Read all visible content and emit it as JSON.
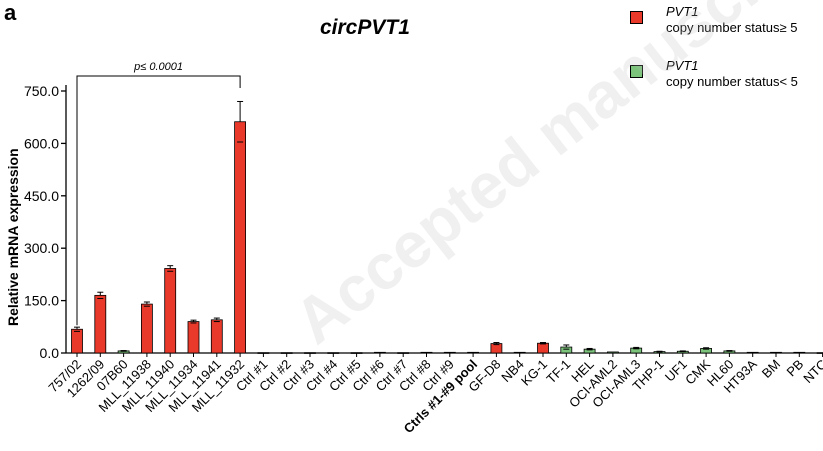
{
  "panel_label": "a",
  "watermark": "Accepted manuscript",
  "legend": [
    {
      "gene": "PVT1",
      "text": "copy number status≥ 5",
      "color": "#e8392b"
    },
    {
      "gene": "PVT1",
      "text": "copy number status< 5",
      "color": "#7cc47c"
    }
  ],
  "chart_data": {
    "type": "bar",
    "title": "circPVT1",
    "xlabel": "",
    "ylabel": "Relative mRNA expression",
    "ylim": [
      0,
      750
    ],
    "yticks": [
      "0.0",
      "150.0",
      "300.0",
      "450.0",
      "600.0",
      "750.0"
    ],
    "categories": [
      "757/02",
      "1262/09",
      "07B60",
      "MLL_11938",
      "MLL_11940",
      "MLL_11934",
      "MLL_11941",
      "MLL_11932",
      "Ctrl #1",
      "Ctrl #2",
      "Ctrl #3",
      "Ctrl #4",
      "Ctrl #5",
      "Ctrl #6",
      "Ctrl #7",
      "Ctrl #8",
      "Ctrl #9",
      "Ctrls #1-#9 pool",
      "GF-D8",
      "NB4",
      "KG-1",
      "TF-1",
      "HEL",
      "OCI-AML2",
      "OCI-AML3",
      "THP-1",
      "UF1",
      "CMK",
      "HL60",
      "HT93A",
      "BM",
      "PB",
      "NTC"
    ],
    "bold_categories": [
      "Ctrls #1-#9 pool"
    ],
    "values": [
      68,
      165,
      6,
      140,
      242,
      90,
      95,
      662,
      1,
      1,
      1,
      1,
      1,
      2,
      1,
      2,
      2,
      2,
      27,
      2,
      28,
      17,
      11,
      3,
      14,
      4,
      5,
      13,
      6,
      2,
      2,
      2,
      1
    ],
    "errors": [
      6,
      9,
      1,
      6,
      8,
      4,
      5,
      58,
      0.5,
      0.5,
      0.5,
      0.5,
      0.5,
      0.5,
      0.5,
      0.5,
      0.5,
      0.5,
      3,
      0.5,
      2,
      6,
      2,
      0.5,
      2,
      1,
      1,
      2,
      1,
      0.5,
      0.5,
      0.5,
      0.5
    ],
    "groups": [
      "high",
      "high",
      "low",
      "high",
      "high",
      "high",
      "high",
      "high",
      "high",
      "high",
      "high",
      "high",
      "high",
      "high",
      "high",
      "high",
      "high",
      "high",
      "high",
      "high",
      "high",
      "low",
      "low",
      "low",
      "low",
      "low",
      "low",
      "low",
      "low",
      "low",
      "low",
      "low",
      "low"
    ],
    "colors": {
      "high": "#e8392b",
      "low": "#7cc47c"
    },
    "annotation": {
      "text": "p≤ 0.0001",
      "from": "757/02",
      "to": "MLL_11932"
    }
  }
}
